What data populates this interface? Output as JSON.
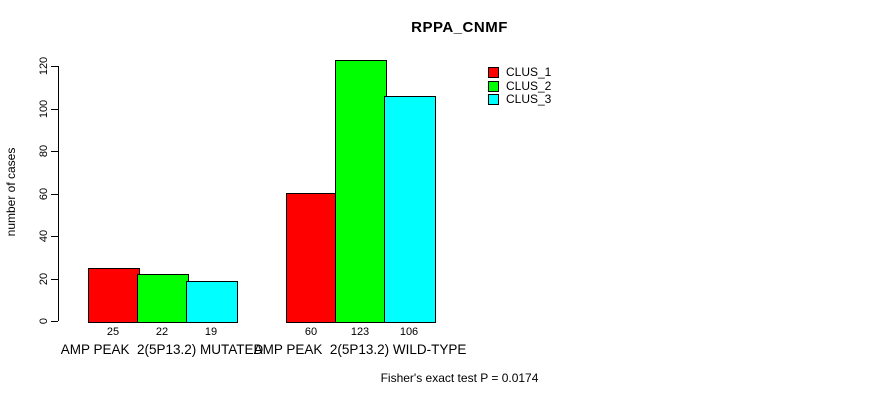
{
  "chart_data": {
    "type": "bar",
    "title": "RPPA_CNMF",
    "ylabel": "number of cases",
    "ylim": [
      0,
      120
    ],
    "yticks": [
      0,
      20,
      40,
      60,
      80,
      100,
      120
    ],
    "grid": false,
    "legend_position": "top-right",
    "categories": [
      "AMP PEAK  2(5P13.2) MUTATED",
      "AMP PEAK  2(5P13.2) WILD-TYPE"
    ],
    "series": [
      {
        "name": "CLUS_1",
        "color": "#ff0000",
        "values": [
          25,
          60
        ]
      },
      {
        "name": "CLUS_2",
        "color": "#00ff00",
        "values": [
          22,
          123
        ]
      },
      {
        "name": "CLUS_3",
        "color": "#00ffff",
        "values": [
          19,
          106
        ]
      }
    ],
    "footnote": "Fisher's exact test P = 0.0174",
    "colors": {
      "bar_border": "#000000",
      "axis": "#000000",
      "text": "#000000",
      "background": "#ffffff"
    }
  }
}
